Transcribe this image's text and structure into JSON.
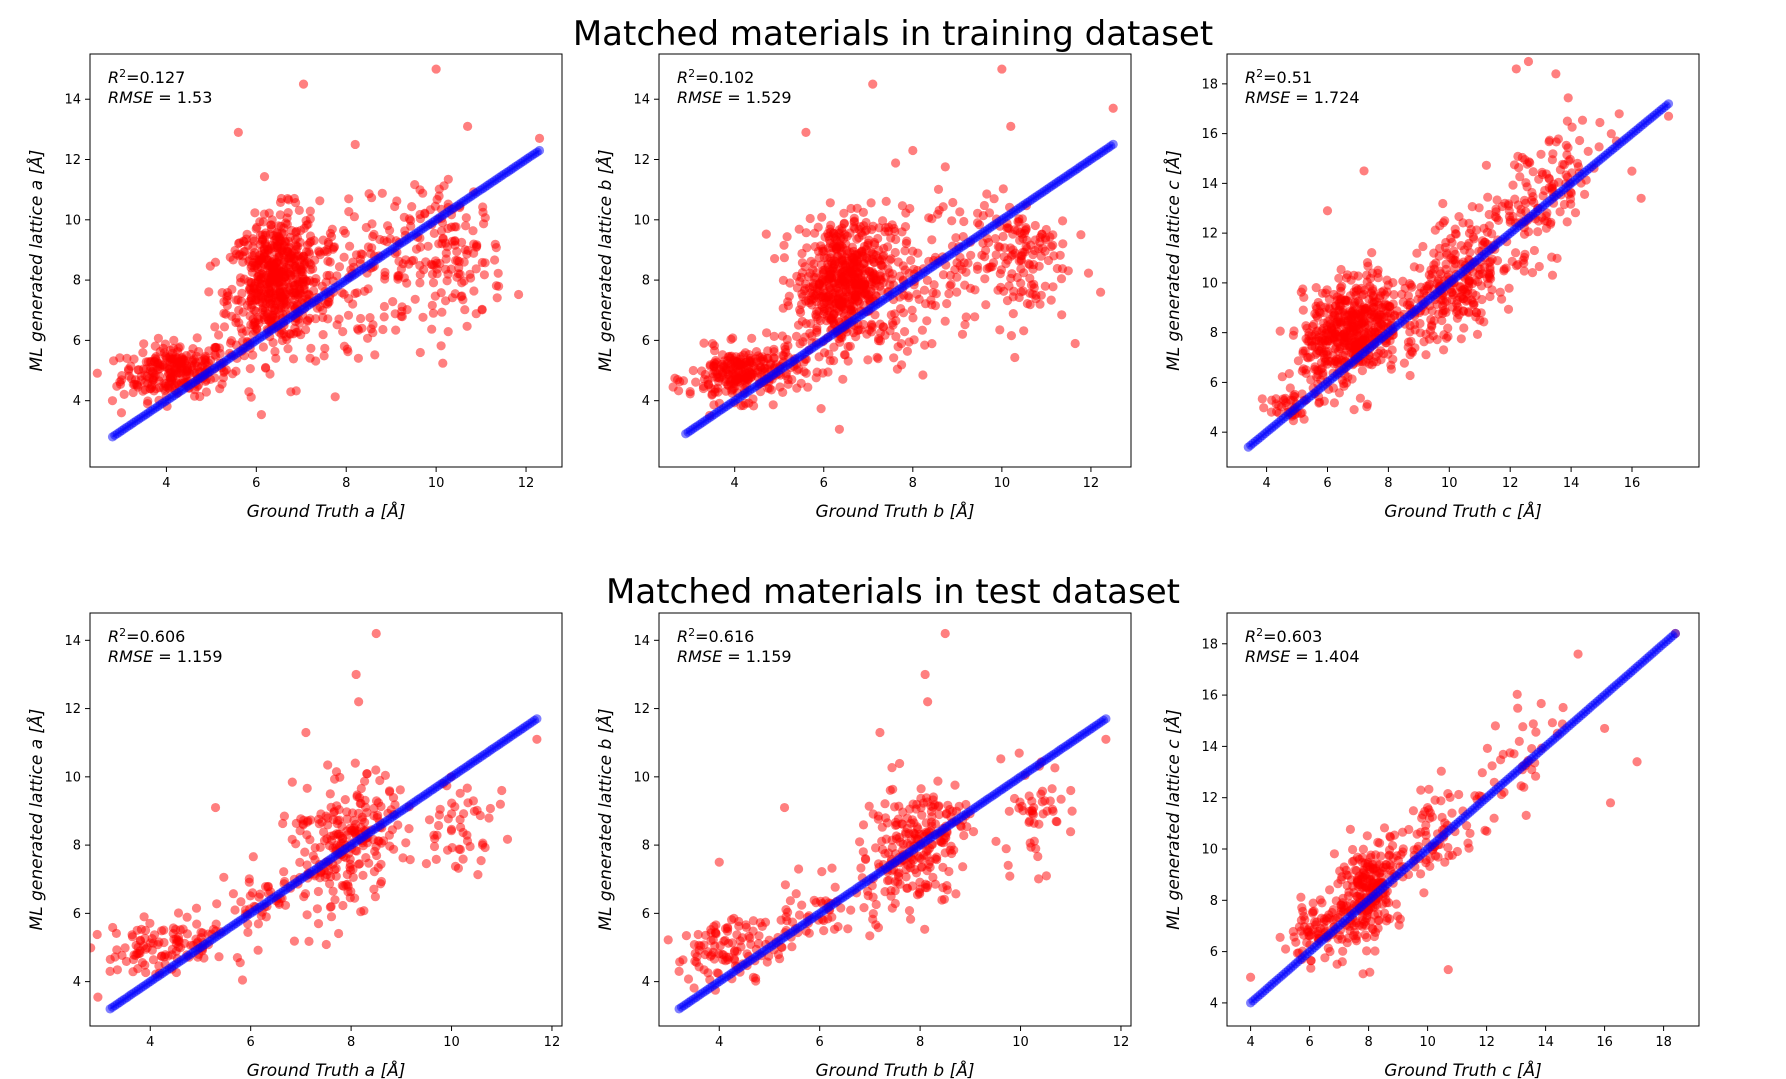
{
  "figure": {
    "row_titles": [
      "Matched materials in training dataset",
      "Matched materials in test dataset"
    ]
  },
  "colors": {
    "points": "#ff0000",
    "fit": "#0000ff"
  },
  "chart_data": [
    {
      "type": "scatter",
      "row": 0,
      "xlabel": "Ground Truth a [Å]",
      "ylabel": "ML generated lattice a [Å]",
      "r2": "0.127",
      "rmse": "1.53",
      "xlim": [
        2.3,
        12.8
      ],
      "ylim": [
        1.8,
        15.5
      ],
      "xticks": [
        4,
        6,
        8,
        10,
        12
      ],
      "yticks": [
        4,
        6,
        8,
        10,
        12,
        14
      ],
      "diag": [
        2.8,
        12.3
      ],
      "clusters": [
        {
          "cx": 4.2,
          "cy": 5.0,
          "sx": 0.6,
          "sy": 0.45,
          "r": 0.15,
          "n": 260
        },
        {
          "cx": 6.4,
          "cy": 8.0,
          "sx": 0.5,
          "sy": 1.1,
          "r": 0.2,
          "n": 520
        },
        {
          "cx": 7.3,
          "cy": 7.5,
          "sx": 0.9,
          "sy": 1.4,
          "r": 0.25,
          "n": 160
        },
        {
          "cx": 9.0,
          "cy": 8.8,
          "sx": 0.7,
          "sy": 1.1,
          "r": 0.3,
          "n": 60
        },
        {
          "cx": 10.4,
          "cy": 8.7,
          "sx": 0.55,
          "sy": 1.1,
          "r": 0.0,
          "n": 130
        }
      ],
      "extra_points": [
        [
          10.0,
          15.0
        ],
        [
          7.05,
          14.5
        ],
        [
          5.6,
          12.9
        ],
        [
          10.7,
          13.1
        ],
        [
          8.2,
          12.5
        ],
        [
          12.3,
          12.7
        ],
        [
          3.0,
          3.6
        ],
        [
          2.8,
          4.0
        ]
      ]
    },
    {
      "type": "scatter",
      "row": 0,
      "xlabel": "Ground Truth b [Å]",
      "ylabel": "ML generated lattice b [Å]",
      "r2": "0.102",
      "rmse": "1.529",
      "xlim": [
        2.3,
        12.9
      ],
      "ylim": [
        1.8,
        15.5
      ],
      "xticks": [
        4,
        6,
        8,
        10,
        12
      ],
      "yticks": [
        4,
        6,
        8,
        10,
        12,
        14
      ],
      "diag": [
        2.9,
        12.5
      ],
      "clusters": [
        {
          "cx": 4.2,
          "cy": 4.9,
          "sx": 0.6,
          "sy": 0.45,
          "r": 0.15,
          "n": 260
        },
        {
          "cx": 6.4,
          "cy": 8.0,
          "sx": 0.5,
          "sy": 1.1,
          "r": 0.2,
          "n": 520
        },
        {
          "cx": 7.3,
          "cy": 7.5,
          "sx": 0.9,
          "sy": 1.4,
          "r": 0.25,
          "n": 160
        },
        {
          "cx": 9.0,
          "cy": 8.8,
          "sx": 0.7,
          "sy": 1.1,
          "r": 0.3,
          "n": 60
        },
        {
          "cx": 10.4,
          "cy": 8.7,
          "sx": 0.55,
          "sy": 1.1,
          "r": 0.0,
          "n": 130
        }
      ],
      "extra_points": [
        [
          10.0,
          15.0
        ],
        [
          7.1,
          14.5
        ],
        [
          5.6,
          12.9
        ],
        [
          10.2,
          13.1
        ],
        [
          8.0,
          12.3
        ],
        [
          12.5,
          13.7
        ],
        [
          3.0,
          4.3
        ]
      ]
    },
    {
      "type": "scatter",
      "row": 0,
      "xlabel": "Ground Truth c [Å]",
      "ylabel": "ML generated lattice c [Å]",
      "r2": "0.51",
      "rmse": "1.724",
      "xlim": [
        2.7,
        18.2
      ],
      "ylim": [
        2.6,
        19.2
      ],
      "xticks": [
        4,
        6,
        8,
        10,
        12,
        14,
        16
      ],
      "yticks": [
        4,
        6,
        8,
        10,
        12,
        14,
        16,
        18
      ],
      "diag": [
        3.4,
        17.2
      ],
      "clusters": [
        {
          "cx": 4.6,
          "cy": 5.1,
          "sx": 0.4,
          "sy": 0.35,
          "r": 0.0,
          "n": 40
        },
        {
          "cx": 6.8,
          "cy": 8.1,
          "sx": 0.8,
          "sy": 1.1,
          "r": 0.3,
          "n": 520
        },
        {
          "cx": 10.2,
          "cy": 9.9,
          "sx": 1.0,
          "sy": 1.3,
          "r": 0.55,
          "n": 280
        },
        {
          "cx": 13.0,
          "cy": 13.5,
          "sx": 1.1,
          "sy": 1.4,
          "r": 0.5,
          "n": 140
        }
      ],
      "extra_points": [
        [
          12.6,
          18.9
        ],
        [
          12.2,
          18.6
        ],
        [
          13.5,
          18.4
        ],
        [
          6.0,
          12.9
        ],
        [
          7.2,
          14.5
        ],
        [
          17.2,
          16.7
        ],
        [
          16.3,
          13.4
        ]
      ]
    },
    {
      "type": "scatter",
      "row": 1,
      "xlabel": "Ground Truth a [Å]",
      "ylabel": "ML generated lattice a [Å]",
      "r2": "0.606",
      "rmse": "1.159",
      "xlim": [
        2.8,
        12.2
      ],
      "ylim": [
        2.7,
        14.8
      ],
      "xticks": [
        4,
        6,
        8,
        10,
        12
      ],
      "yticks": [
        4,
        6,
        8,
        10,
        12,
        14
      ],
      "diag": [
        3.2,
        11.7
      ],
      "clusters": [
        {
          "cx": 4.3,
          "cy": 5.0,
          "sx": 0.6,
          "sy": 0.45,
          "r": 0.3,
          "n": 110
        },
        {
          "cx": 6.0,
          "cy": 6.2,
          "sx": 0.5,
          "sy": 0.6,
          "r": 0.4,
          "n": 50
        },
        {
          "cx": 8.0,
          "cy": 8.0,
          "sx": 0.45,
          "sy": 0.9,
          "r": 0.3,
          "n": 200
        },
        {
          "cx": 7.3,
          "cy": 7.8,
          "sx": 0.4,
          "sy": 1.2,
          "r": 0.0,
          "n": 40
        },
        {
          "cx": 10.2,
          "cy": 8.7,
          "sx": 0.4,
          "sy": 0.8,
          "r": 0.3,
          "n": 50
        }
      ],
      "extra_points": [
        [
          8.5,
          14.2
        ],
        [
          8.1,
          13.0
        ],
        [
          8.15,
          12.2
        ],
        [
          7.1,
          11.3
        ],
        [
          5.3,
          9.1
        ],
        [
          11.0,
          9.6
        ],
        [
          11.7,
          11.1
        ],
        [
          3.2,
          4.3
        ]
      ]
    },
    {
      "type": "scatter",
      "row": 1,
      "xlabel": "Ground Truth b [Å]",
      "ylabel": "ML generated lattice b [Å]",
      "r2": "0.616",
      "rmse": "1.159",
      "xlim": [
        2.8,
        12.2
      ],
      "ylim": [
        2.7,
        14.8
      ],
      "xticks": [
        4,
        6,
        8,
        10,
        12
      ],
      "yticks": [
        4,
        6,
        8,
        10,
        12,
        14
      ],
      "diag": [
        3.2,
        11.7
      ],
      "clusters": [
        {
          "cx": 4.3,
          "cy": 5.0,
          "sx": 0.6,
          "sy": 0.45,
          "r": 0.3,
          "n": 110
        },
        {
          "cx": 6.0,
          "cy": 6.2,
          "sx": 0.5,
          "sy": 0.6,
          "r": 0.4,
          "n": 50
        },
        {
          "cx": 8.0,
          "cy": 8.0,
          "sx": 0.45,
          "sy": 0.9,
          "r": 0.3,
          "n": 200
        },
        {
          "cx": 7.3,
          "cy": 7.8,
          "sx": 0.4,
          "sy": 1.2,
          "r": 0.0,
          "n": 40
        },
        {
          "cx": 10.2,
          "cy": 8.7,
          "sx": 0.4,
          "sy": 0.8,
          "r": 0.3,
          "n": 50
        }
      ],
      "extra_points": [
        [
          8.5,
          14.2
        ],
        [
          8.1,
          13.0
        ],
        [
          8.15,
          12.2
        ],
        [
          7.2,
          11.3
        ],
        [
          5.3,
          9.1
        ],
        [
          11.0,
          9.6
        ],
        [
          11.7,
          11.1
        ],
        [
          3.2,
          4.3
        ],
        [
          4.0,
          7.5
        ]
      ]
    },
    {
      "type": "scatter",
      "row": 1,
      "xlabel": "Ground Truth c [Å]",
      "ylabel": "ML generated lattice c [Å]",
      "r2": "0.603",
      "rmse": "1.404",
      "xlim": [
        3.2,
        19.2
      ],
      "ylim": [
        3.1,
        19.2
      ],
      "xticks": [
        4,
        6,
        8,
        10,
        12,
        14,
        16,
        18
      ],
      "yticks": [
        4,
        6,
        8,
        10,
        12,
        14,
        16,
        18
      ],
      "diag": [
        4.0,
        18.4
      ],
      "clusters": [
        {
          "cx": 6.3,
          "cy": 6.8,
          "sx": 0.6,
          "sy": 0.6,
          "r": 0.3,
          "n": 90
        },
        {
          "cx": 8.0,
          "cy": 8.4,
          "sx": 0.55,
          "sy": 1.0,
          "r": 0.3,
          "n": 230
        },
        {
          "cx": 10.2,
          "cy": 10.5,
          "sx": 0.8,
          "sy": 1.0,
          "r": 0.5,
          "n": 80
        },
        {
          "cx": 13.2,
          "cy": 13.4,
          "sx": 0.9,
          "sy": 1.2,
          "r": 0.5,
          "n": 40
        }
      ],
      "extra_points": [
        [
          15.1,
          17.6
        ],
        [
          16.0,
          14.7
        ],
        [
          16.2,
          11.8
        ],
        [
          17.1,
          13.4
        ],
        [
          10.7,
          5.3
        ],
        [
          4.0,
          5.0
        ],
        [
          18.4,
          18.4
        ]
      ]
    }
  ]
}
